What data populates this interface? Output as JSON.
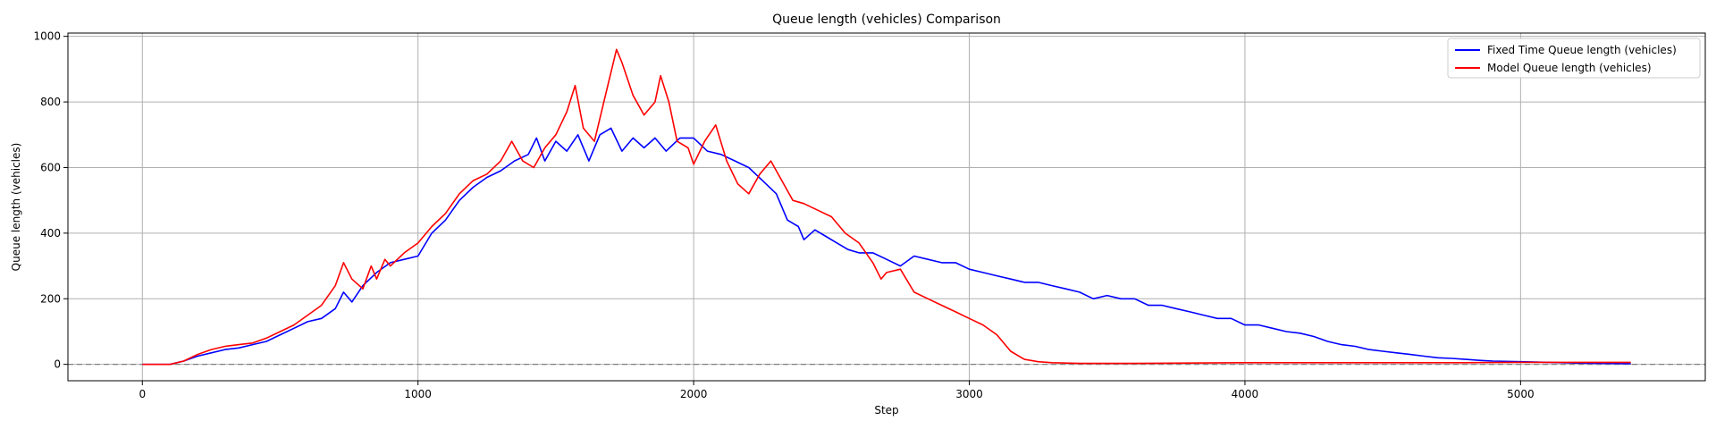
{
  "chart_data": {
    "type": "line",
    "title": "Queue length (vehicles) Comparison",
    "xlabel": "Step",
    "ylabel": "Queue length (vehicles)",
    "xlim": [
      -270,
      5670
    ],
    "ylim": [
      -50,
      1010
    ],
    "xticks": [
      0,
      1000,
      2000,
      3000,
      4000,
      5000
    ],
    "yticks": [
      0,
      200,
      400,
      600,
      800,
      1000
    ],
    "grid": true,
    "legend_position": "top-right",
    "reference_line": {
      "y": 0,
      "style": "dashed",
      "color": "#808080"
    },
    "series": [
      {
        "name": "Fixed Time Queue length (vehicles)",
        "color": "#0000ff",
        "x": [
          0,
          100,
          150,
          200,
          250,
          300,
          350,
          400,
          450,
          500,
          550,
          600,
          650,
          700,
          730,
          760,
          800,
          850,
          900,
          950,
          1000,
          1050,
          1100,
          1150,
          1200,
          1250,
          1300,
          1350,
          1400,
          1430,
          1460,
          1500,
          1540,
          1580,
          1620,
          1660,
          1700,
          1740,
          1780,
          1820,
          1860,
          1900,
          1950,
          2000,
          2050,
          2100,
          2150,
          2200,
          2250,
          2300,
          2340,
          2380,
          2400,
          2440,
          2480,
          2520,
          2560,
          2600,
          2650,
          2700,
          2750,
          2800,
          2850,
          2900,
          2950,
          3000,
          3050,
          3100,
          3150,
          3200,
          3250,
          3300,
          3350,
          3400,
          3450,
          3500,
          3550,
          3600,
          3650,
          3700,
          3750,
          3800,
          3850,
          3900,
          3950,
          4000,
          4050,
          4100,
          4150,
          4200,
          4250,
          4300,
          4350,
          4400,
          4450,
          4500,
          4550,
          4600,
          4650,
          4700,
          4750,
          4800,
          4850,
          4900,
          5000,
          5100,
          5200,
          5300,
          5400
        ],
        "y": [
          0,
          0,
          10,
          25,
          35,
          45,
          50,
          60,
          70,
          90,
          110,
          130,
          140,
          170,
          220,
          190,
          240,
          280,
          310,
          320,
          330,
          400,
          440,
          500,
          540,
          570,
          590,
          620,
          640,
          690,
          620,
          680,
          650,
          700,
          620,
          700,
          720,
          650,
          690,
          660,
          690,
          650,
          690,
          690,
          650,
          640,
          620,
          600,
          560,
          520,
          440,
          420,
          380,
          410,
          390,
          370,
          350,
          340,
          340,
          320,
          300,
          330,
          320,
          310,
          310,
          290,
          280,
          270,
          260,
          250,
          250,
          240,
          230,
          220,
          200,
          210,
          200,
          200,
          180,
          180,
          170,
          160,
          150,
          140,
          140,
          120,
          120,
          110,
          100,
          95,
          85,
          70,
          60,
          55,
          45,
          40,
          35,
          30,
          25,
          20,
          18,
          15,
          12,
          10,
          8,
          6,
          4,
          3,
          2
        ]
      },
      {
        "name": "Model Queue length (vehicles)",
        "color": "#ff0000",
        "x": [
          0,
          100,
          150,
          200,
          250,
          300,
          350,
          400,
          450,
          500,
          550,
          600,
          650,
          700,
          730,
          760,
          800,
          830,
          850,
          880,
          900,
          950,
          1000,
          1050,
          1100,
          1150,
          1200,
          1250,
          1300,
          1340,
          1380,
          1420,
          1460,
          1500,
          1540,
          1570,
          1600,
          1640,
          1680,
          1720,
          1740,
          1780,
          1820,
          1860,
          1880,
          1910,
          1940,
          1980,
          2000,
          2040,
          2080,
          2120,
          2160,
          2200,
          2240,
          2280,
          2320,
          2360,
          2400,
          2450,
          2500,
          2550,
          2600,
          2650,
          2680,
          2700,
          2750,
          2800,
          2850,
          2900,
          2950,
          3000,
          3050,
          3100,
          3150,
          3200,
          3250,
          3300,
          3400,
          3500,
          3600,
          3800,
          4000,
          4200,
          4400,
          4600,
          4800,
          5000,
          5200,
          5400
        ],
        "y": [
          0,
          0,
          10,
          30,
          45,
          55,
          60,
          65,
          80,
          100,
          120,
          150,
          180,
          240,
          310,
          260,
          230,
          300,
          260,
          320,
          300,
          340,
          370,
          420,
          460,
          520,
          560,
          580,
          620,
          680,
          620,
          600,
          660,
          700,
          770,
          850,
          720,
          680,
          820,
          960,
          920,
          820,
          760,
          800,
          880,
          800,
          680,
          660,
          610,
          680,
          730,
          620,
          550,
          520,
          580,
          620,
          560,
          500,
          490,
          470,
          450,
          400,
          370,
          310,
          260,
          280,
          290,
          220,
          200,
          180,
          160,
          140,
          120,
          90,
          40,
          15,
          8,
          5,
          3,
          3,
          3,
          4,
          5,
          5,
          5,
          5,
          5,
          6,
          6,
          6
        ]
      }
    ]
  }
}
